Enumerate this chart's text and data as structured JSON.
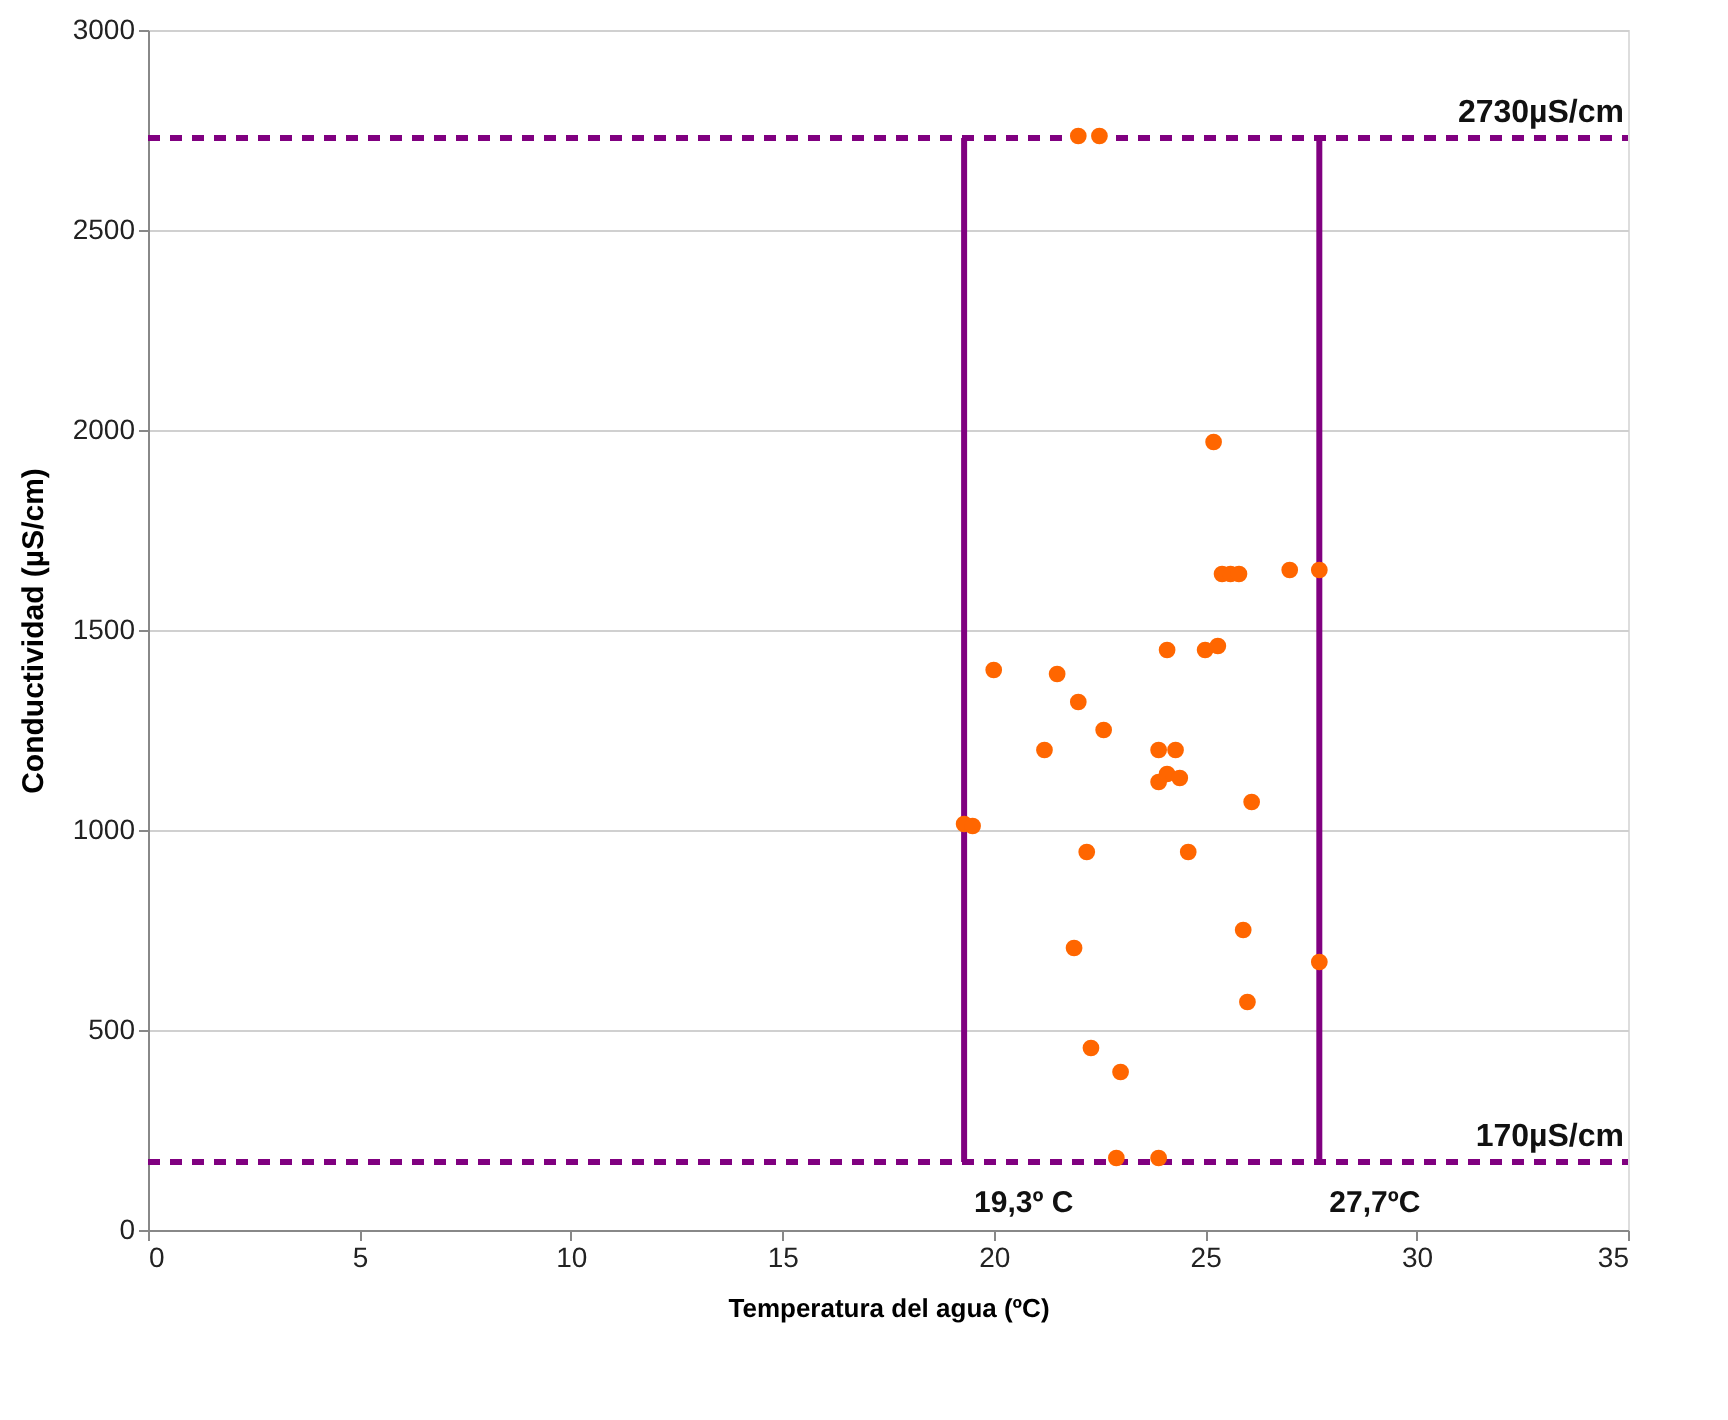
{
  "chart_data": {
    "type": "scatter",
    "xlabel": "Temperatura del agua (ºC)",
    "ylabel": "Conductividad (µS/cm)",
    "xlim": [
      0,
      35
    ],
    "xticks": [
      0,
      5,
      10,
      15,
      20,
      25,
      30,
      35
    ],
    "ylim": [
      0,
      3000
    ],
    "yticks": [
      0,
      500,
      1000,
      1500,
      2000,
      2500,
      3000
    ],
    "grid": "y",
    "legend": false,
    "marker": "circle",
    "series": [
      {
        "color": "#ff6600",
        "x": [
          22.0,
          22.5,
          25.2,
          25.4,
          25.6,
          25.8,
          27.0,
          27.7,
          24.1,
          25.0,
          25.3,
          20.0,
          21.5,
          22.0,
          22.6,
          21.2,
          23.9,
          24.3,
          24.1,
          23.9,
          24.4,
          26.1,
          19.3,
          19.5,
          22.2,
          24.6,
          25.9,
          21.9,
          27.7,
          26.0,
          22.3,
          23.0,
          22.9,
          23.9
        ],
        "values": [
          2735,
          2735,
          1970,
          1640,
          1640,
          1640,
          1650,
          1650,
          1450,
          1450,
          1460,
          1400,
          1390,
          1320,
          1250,
          1200,
          1200,
          1200,
          1140,
          1120,
          1130,
          1070,
          1015,
          1010,
          945,
          945,
          750,
          705,
          670,
          570,
          455,
          395,
          180,
          180
        ]
      }
    ],
    "ref_lines": [
      {
        "axis": "y",
        "value": 2730,
        "label": "2730µS/cm",
        "color": "#800080",
        "line_style": "dashed"
      },
      {
        "axis": "y",
        "value": 170,
        "label": "170µS/cm",
        "color": "#800080",
        "line_style": "dashed"
      },
      {
        "axis": "x",
        "value": 19.3,
        "label": "19,3º C",
        "color": "#800080",
        "line_style": "solid"
      },
      {
        "axis": "x",
        "value": 27.7,
        "label": "27,7ºC",
        "color": "#800080",
        "line_style": "solid"
      }
    ]
  }
}
